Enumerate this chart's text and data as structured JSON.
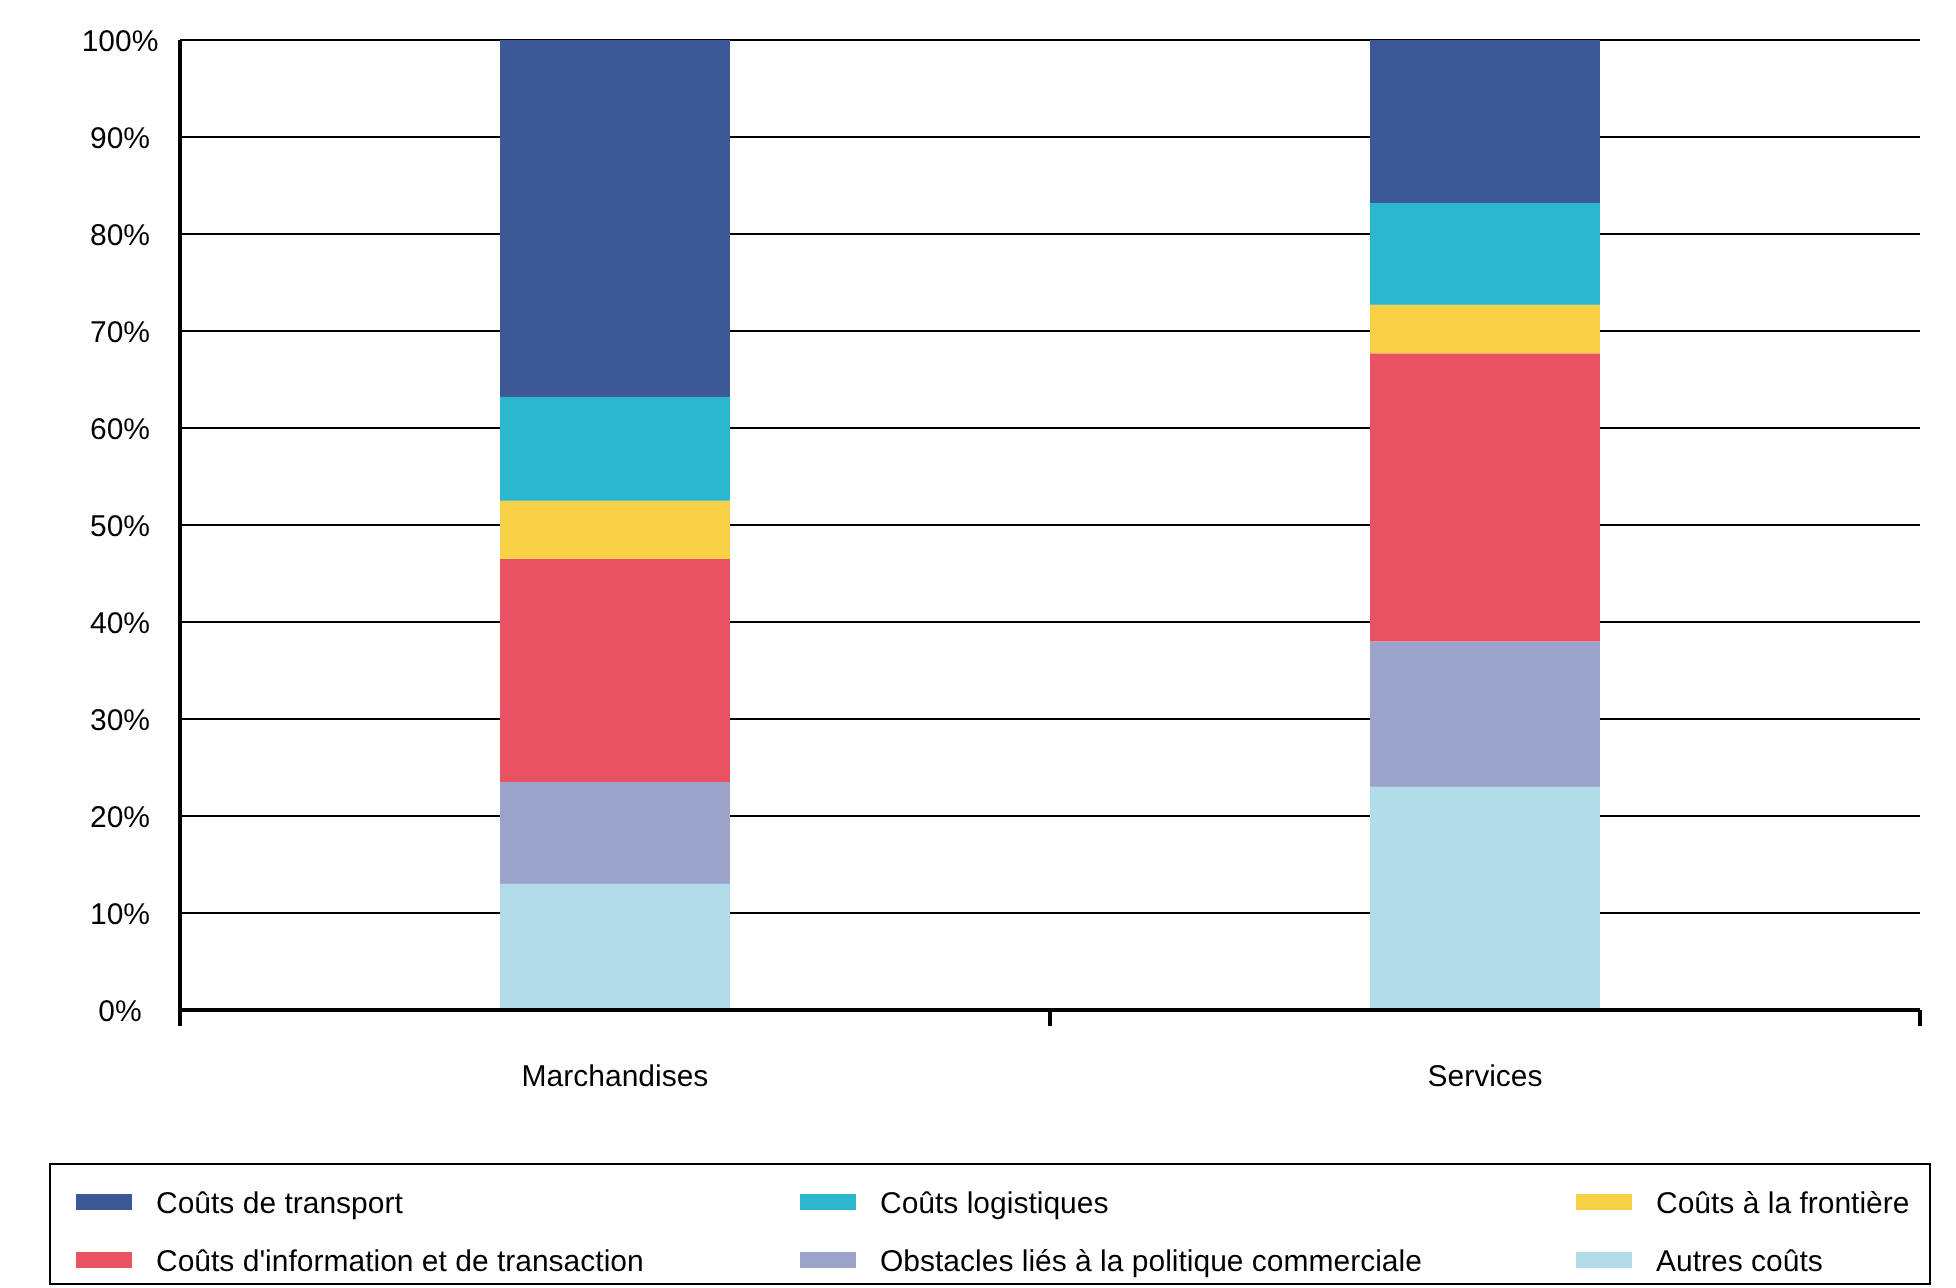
{
  "chart_data": {
    "type": "bar",
    "stacked": true,
    "categories": [
      "Marchandises",
      "Services"
    ],
    "series": [
      {
        "name": "Autres coûts",
        "color": "#b1dde8",
        "values": [
          13,
          23
        ]
      },
      {
        "name": "Obstacles liés à la politique commerciale",
        "color": "#9ba3cb",
        "values": [
          10.5,
          15
        ]
      },
      {
        "name": "Coûts d'information et de transaction",
        "color": "#e85263",
        "values": [
          23,
          29.7
        ]
      },
      {
        "name": "Coûts à la frontière",
        "color": "#f7d046",
        "values": [
          6,
          5
        ]
      },
      {
        "name": "Coûts logistiques",
        "color": "#2bb8cf",
        "values": [
          10.7,
          10.5
        ]
      },
      {
        "name": "Coûts de transport",
        "color": "#3d5896",
        "values": [
          36.8,
          16.8
        ]
      }
    ],
    "ylim": [
      0,
      100
    ],
    "yticks": [
      {
        "value": 0,
        "label": "0%"
      },
      {
        "value": 10,
        "label": "10%"
      },
      {
        "value": 20,
        "label": "20%"
      },
      {
        "value": 30,
        "label": "30%"
      },
      {
        "value": 40,
        "label": "40%"
      },
      {
        "value": 50,
        "label": "50%"
      },
      {
        "value": 60,
        "label": "60%"
      },
      {
        "value": 70,
        "label": "70%"
      },
      {
        "value": 80,
        "label": "80%"
      },
      {
        "value": 90,
        "label": "90%"
      },
      {
        "value": 100,
        "label": "100%"
      }
    ],
    "grid": "y",
    "legend": "bottom"
  }
}
